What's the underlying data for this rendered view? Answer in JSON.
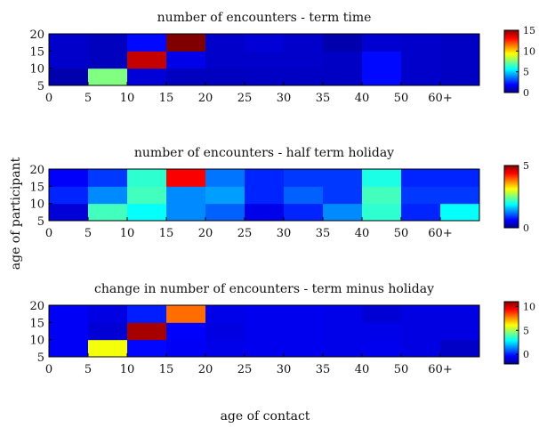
{
  "figure": {
    "ylabel": "age of participant",
    "xlabel": "age of contact"
  },
  "chart_data": [
    {
      "type": "heatmap",
      "title": "number of encounters - term time",
      "x_ticks": [
        "0",
        "5",
        "10",
        "15",
        "20",
        "25",
        "30",
        "35",
        "40",
        "50",
        "60+"
      ],
      "y_ticks": [
        "5",
        "10",
        "15",
        "20"
      ],
      "x_bins": [
        "0-5",
        "5-10",
        "10-15",
        "15-20",
        "20-25",
        "25-30",
        "30-35",
        "35-40",
        "40-50",
        "50-60",
        "60+"
      ],
      "y_bins": [
        "5-10",
        "10-15",
        "15-20"
      ],
      "values": [
        [
          0.5,
          7.5,
          1.2,
          0.8,
          0.8,
          0.9,
          0.9,
          0.9,
          2.0,
          1.0,
          0.9
        ],
        [
          1.0,
          0.8,
          14.0,
          1.5,
          1.0,
          1.0,
          1.0,
          0.9,
          2.0,
          1.0,
          0.9
        ],
        [
          1.0,
          0.8,
          2.0,
          15.0,
          1.0,
          1.2,
          1.0,
          0.5,
          1.1,
          1.0,
          0.9
        ]
      ],
      "colorbar": {
        "min": 0,
        "max": 15,
        "ticks": [
          "0",
          "5",
          "10",
          "15"
        ]
      }
    },
    {
      "type": "heatmap",
      "title": "number of encounters - half term holiday",
      "x_ticks": [
        "0",
        "5",
        "10",
        "15",
        "20",
        "25",
        "30",
        "35",
        "40",
        "50",
        "60+"
      ],
      "y_ticks": [
        "5",
        "10",
        "15",
        "20"
      ],
      "x_bins": [
        "0-5",
        "5-10",
        "10-15",
        "15-20",
        "20-25",
        "25-30",
        "30-35",
        "35-40",
        "40-50",
        "50-60",
        "60+"
      ],
      "y_bins": [
        "5-10",
        "10-15",
        "15-20"
      ],
      "values": [
        [
          0.4,
          2.2,
          1.9,
          1.3,
          1.1,
          0.5,
          0.8,
          1.3,
          2.1,
          0.8,
          1.9
        ],
        [
          0.8,
          1.3,
          2.2,
          1.3,
          1.4,
          0.8,
          1.1,
          0.9,
          2.2,
          0.9,
          0.9
        ],
        [
          0.6,
          0.9,
          2.1,
          4.4,
          1.2,
          0.8,
          0.9,
          0.9,
          2.0,
          0.8,
          0.8
        ]
      ],
      "colorbar": {
        "min": 0,
        "max": 5,
        "ticks": [
          "0",
          "5"
        ]
      }
    },
    {
      "type": "heatmap",
      "title": "change in number of encounters - term minus holiday",
      "x_ticks": [
        "0",
        "5",
        "10",
        "15",
        "20",
        "25",
        "30",
        "35",
        "40",
        "50",
        "60+"
      ],
      "y_ticks": [
        "5",
        "10",
        "15",
        "20"
      ],
      "x_bins": [
        "0-5",
        "5-10",
        "10-15",
        "15-20",
        "20-25",
        "25-30",
        "30-35",
        "35-40",
        "40-50",
        "50-60",
        "60+"
      ],
      "y_bins": [
        "5-10",
        "10-15",
        "15-20"
      ],
      "values": [
        [
          -0.5,
          6.0,
          -0.3,
          -0.5,
          -0.7,
          -0.6,
          -0.6,
          -0.7,
          -0.6,
          -0.8,
          -1.2
        ],
        [
          -0.5,
          -1.0,
          10.5,
          -0.4,
          -0.8,
          -0.6,
          -0.6,
          -0.7,
          -0.7,
          -0.8,
          -0.8
        ],
        [
          -0.5,
          -0.8,
          0.0,
          8.0,
          -0.7,
          -0.6,
          -0.6,
          -0.7,
          -1.0,
          -0.8,
          -0.8
        ]
      ],
      "colorbar": {
        "min": -2,
        "max": 11,
        "ticks": [
          "0",
          "5",
          "10"
        ]
      }
    }
  ]
}
